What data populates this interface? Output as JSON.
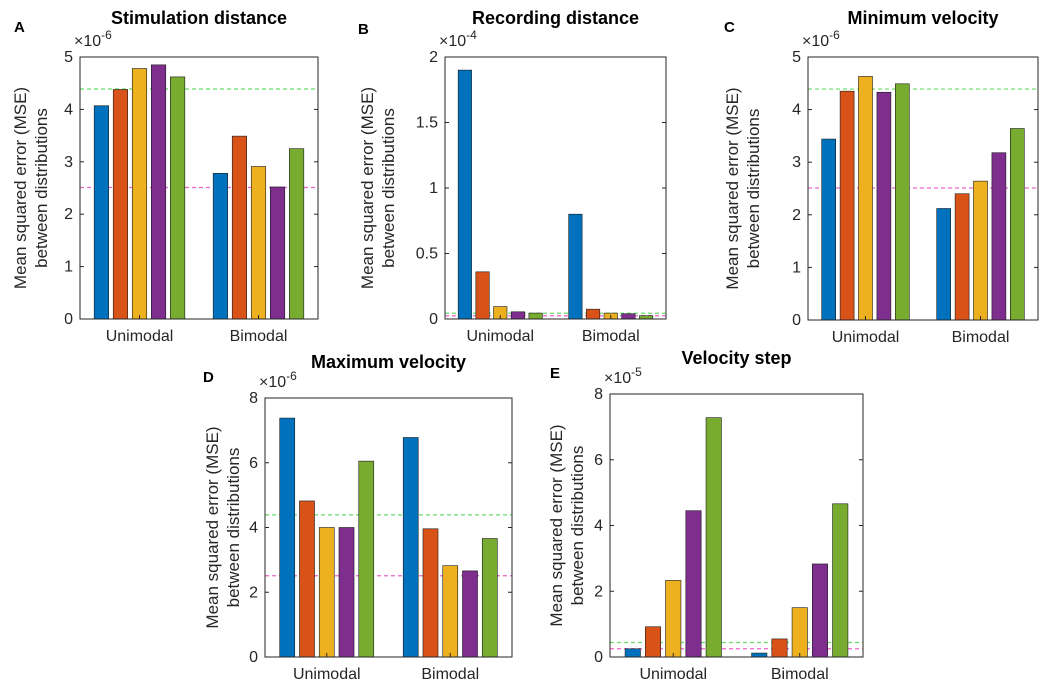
{
  "chart_data": [
    {
      "panel": "A",
      "type": "bar",
      "title": "Stimulation distance",
      "ylabel": [
        "Mean squared error (MSE)",
        "between distributions"
      ],
      "exponent_label": "×10",
      "exponent": "-6",
      "categories": [
        "Unimodal",
        "Bimodal"
      ],
      "ylim": [
        0,
        5
      ],
      "yticks": [
        "0",
        "1",
        "2",
        "3",
        "4",
        "5"
      ],
      "series_colors": [
        "#0072BD",
        "#D95319",
        "#EDB120",
        "#7E2F8E",
        "#77AC30"
      ],
      "values": [
        [
          4.07,
          4.38,
          4.78,
          4.85,
          4.62
        ],
        [
          2.78,
          3.49,
          2.91,
          2.52,
          3.25
        ]
      ],
      "reference_lines": [
        {
          "value": 4.39,
          "color": "#66dd66"
        },
        {
          "value": 2.51,
          "color": "#ee66cc"
        }
      ]
    },
    {
      "panel": "B",
      "type": "bar",
      "title": "Recording distance",
      "ylabel": [
        "Mean squared error (MSE)",
        "between distributions"
      ],
      "exponent_label": "×10",
      "exponent": "-4",
      "categories": [
        "Unimodal",
        "Bimodal"
      ],
      "ylim": [
        0,
        2
      ],
      "yticks": [
        "0",
        "0.5",
        "1",
        "1.5",
        "2"
      ],
      "series_colors": [
        "#0072BD",
        "#D95319",
        "#EDB120",
        "#7E2F8E",
        "#77AC30"
      ],
      "values": [
        [
          1.9,
          0.36,
          0.095,
          0.055,
          0.045
        ],
        [
          0.8,
          0.075,
          0.045,
          0.04,
          0.025
        ]
      ],
      "reference_lines": [
        {
          "value": 0.044,
          "color": "#66dd66"
        },
        {
          "value": 0.025,
          "color": "#ee66cc"
        }
      ]
    },
    {
      "panel": "C",
      "type": "bar",
      "title": "Minimum velocity",
      "ylabel": [
        "Mean squared error (MSE)",
        "between distributions"
      ],
      "exponent_label": "×10",
      "exponent": "-6",
      "categories": [
        "Unimodal",
        "Bimodal"
      ],
      "ylim": [
        0,
        5
      ],
      "yticks": [
        "0",
        "1",
        "2",
        "3",
        "4",
        "5"
      ],
      "series_colors": [
        "#0072BD",
        "#D95319",
        "#EDB120",
        "#7E2F8E",
        "#77AC30"
      ],
      "values": [
        [
          3.44,
          4.35,
          4.63,
          4.33,
          4.49
        ],
        [
          2.12,
          2.4,
          2.64,
          3.18,
          3.64
        ]
      ],
      "reference_lines": [
        {
          "value": 4.39,
          "color": "#66dd66"
        },
        {
          "value": 2.51,
          "color": "#ee66cc"
        }
      ]
    },
    {
      "panel": "D",
      "type": "bar",
      "title": "Maximum velocity",
      "ylabel": [
        "Mean squared error (MSE)",
        "between distributions"
      ],
      "exponent_label": "×10",
      "exponent": "-6",
      "categories": [
        "Unimodal",
        "Bimodal"
      ],
      "ylim": [
        0,
        8
      ],
      "yticks": [
        "0",
        "2",
        "4",
        "6",
        "8"
      ],
      "series_colors": [
        "#0072BD",
        "#D95319",
        "#EDB120",
        "#7E2F8E",
        "#77AC30"
      ],
      "values": [
        [
          7.38,
          4.82,
          4.0,
          4.0,
          6.05
        ],
        [
          6.78,
          3.96,
          2.82,
          2.66,
          3.66
        ]
      ],
      "reference_lines": [
        {
          "value": 4.39,
          "color": "#66dd66"
        },
        {
          "value": 2.51,
          "color": "#ee66cc"
        }
      ]
    },
    {
      "panel": "E",
      "type": "bar",
      "title": "Velocity step",
      "ylabel": [
        "Mean squared error (MSE)",
        "between distributions"
      ],
      "exponent_label": "×10",
      "exponent": "-5",
      "categories": [
        "Unimodal",
        "Bimodal"
      ],
      "ylim": [
        0,
        8
      ],
      "yticks": [
        "0",
        "2",
        "4",
        "6",
        "8"
      ],
      "series_colors": [
        "#0072BD",
        "#D95319",
        "#EDB120",
        "#7E2F8E",
        "#77AC30"
      ],
      "values": [
        [
          0.25,
          0.92,
          2.33,
          4.45,
          7.28
        ],
        [
          0.12,
          0.55,
          1.5,
          2.83,
          4.66
        ]
      ],
      "reference_lines": [
        {
          "value": 0.44,
          "color": "#66dd66"
        },
        {
          "value": 0.25,
          "color": "#ee66cc"
        }
      ]
    }
  ]
}
